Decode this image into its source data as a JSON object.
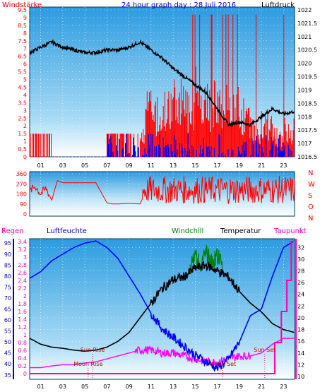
{
  "header": {
    "title": "24 hour graph day : 28 Juli 2016",
    "left_label": "Windstärke",
    "right_label": "Luftdruck"
  },
  "colors": {
    "wind": "#ff0000",
    "gust": "#0000ff",
    "pressure": "#000000",
    "direction": "#ff0000",
    "humidity": "#0000ff",
    "temperature": "#000000",
    "windchill": "#008000",
    "dewpoint": "#ff00ff",
    "rain": "#ff00aa",
    "sun_label": "#cc0000"
  },
  "chart_data": [
    {
      "type": "line",
      "id": "wind-pressure",
      "xlabel": "",
      "x_ticks": [
        "01",
        "03",
        "05",
        "07",
        "09",
        "11",
        "13",
        "15",
        "17",
        "19",
        "21",
        "23"
      ],
      "y_left": {
        "label": "Windstärke",
        "ticks": [
          "0",
          "0.5",
          "1",
          "1.5",
          "2",
          "2.5",
          "3",
          "3.5",
          "4",
          "4.5",
          "5",
          "5.5",
          "6",
          "6.5",
          "7",
          "7.5",
          "8",
          "8.5",
          "9",
          "9.5"
        ],
        "range": [
          0,
          9.5
        ]
      },
      "y_right": {
        "label": "Luftdruck",
        "ticks": [
          "1016.5",
          "1017",
          "1017.5",
          "1018",
          "1018.5",
          "1019",
          "1019.5",
          "1020",
          "1020.5",
          "1021",
          "1021.5",
          "1022"
        ],
        "range": [
          1016.5,
          1022
        ]
      },
      "pressure_series": {
        "hours": [
          0,
          1,
          2,
          3,
          4,
          5,
          6,
          7,
          8,
          9,
          10,
          11,
          12,
          13,
          14,
          15,
          16,
          17,
          18,
          19,
          20,
          21,
          22,
          23,
          24
        ],
        "values": [
          1020.4,
          1020.6,
          1020.8,
          1020.6,
          1020.5,
          1020.4,
          1020.4,
          1020.5,
          1020.5,
          1020.6,
          1020.8,
          1020.5,
          1020.2,
          1019.8,
          1019.5,
          1019.2,
          1018.9,
          1018.3,
          1017.7,
          1017.8,
          1017.7,
          1018.0,
          1018.3,
          1018.1,
          1018.2
        ]
      },
      "wind_steps": {
        "hours": [
          0,
          2,
          7,
          10,
          10.5,
          11,
          12,
          13,
          14,
          15,
          16,
          17,
          18,
          19,
          20,
          21,
          22,
          23,
          24
        ],
        "values": [
          1.5,
          0,
          1.5,
          1.5,
          3.5,
          3.0,
          3.5,
          4.0,
          3.5,
          4.5,
          4.0,
          4.5,
          3.5,
          3.0,
          2.0,
          2.5,
          1.5,
          2.0,
          3.0
        ]
      }
    },
    {
      "type": "line",
      "id": "direction",
      "y_left": {
        "ticks": [
          "0",
          "90",
          "180",
          "270",
          "360"
        ],
        "range": [
          0,
          360
        ]
      },
      "y_right_letters": [
        "N",
        "W",
        "S",
        "O",
        "N"
      ],
      "series": {
        "hours": [
          0,
          0.5,
          1,
          1.5,
          2,
          2.5,
          3,
          4,
          5,
          6,
          7,
          7.5,
          8,
          9,
          10,
          10.5,
          11,
          12,
          13,
          14,
          15,
          16,
          17,
          18,
          19,
          20,
          21,
          22,
          23,
          24
        ],
        "values": [
          200,
          250,
          180,
          230,
          120,
          300,
          280,
          280,
          280,
          280,
          100,
          90,
          90,
          95,
          90,
          200,
          260,
          180,
          240,
          160,
          220,
          200,
          260,
          150,
          230,
          190,
          240,
          170,
          250,
          200
        ]
      }
    },
    {
      "type": "line",
      "id": "temp-humidity",
      "x_ticks": [
        "01",
        "03",
        "05",
        "07",
        "09",
        "11",
        "13",
        "15",
        "17",
        "19",
        "21",
        "23"
      ],
      "labels": {
        "rain": "Regen",
        "humidity": "Luftfeuchte",
        "windchill": "Windchill",
        "temperature": "Temperatur",
        "dewpoint": "Taupunkt"
      },
      "y_humidity": {
        "ticks": [
          "35",
          "40",
          "45",
          "50",
          "55",
          "60",
          "65",
          "70",
          "75",
          "80",
          "85",
          "90",
          "95"
        ],
        "range": [
          33,
          97
        ]
      },
      "y_rain": {
        "ticks": [
          "0",
          "0.2",
          "0.4",
          "0.6",
          "0.8",
          "1",
          "1.2",
          "1.4",
          "1.6",
          "1.8",
          "2",
          "2.2",
          "2.4",
          "2.6",
          "2.8",
          "3",
          "3.2",
          "3.4"
        ],
        "range": [
          0,
          3.4
        ]
      },
      "y_temp": {
        "ticks": [
          "10",
          "12",
          "14",
          "16",
          "18",
          "20",
          "22",
          "24",
          "26",
          "28",
          "30",
          "32"
        ],
        "range": [
          10,
          33
        ]
      },
      "temperature": {
        "hours": [
          0,
          1,
          2,
          3,
          4,
          5,
          6,
          7,
          8,
          9,
          10,
          11,
          12,
          13,
          14,
          15,
          16,
          17,
          18,
          19,
          20,
          21,
          22,
          23,
          24
        ],
        "values": [
          16.5,
          15.5,
          15.0,
          14.8,
          14.5,
          14.3,
          14.5,
          15.0,
          16.0,
          17.5,
          20.0,
          22.5,
          25.0,
          26.5,
          27.0,
          28.5,
          29.0,
          28.0,
          27.0,
          24.5,
          22.5,
          21.0,
          19.0,
          18.0,
          17.5
        ]
      },
      "windchill": {
        "hours": [
          14.5,
          15,
          15.5,
          16,
          16.5,
          17,
          17.5
        ],
        "values": [
          30.0,
          32.0,
          30.5,
          32.5,
          31.0,
          32.0,
          30.5
        ]
      },
      "humidity": {
        "hours": [
          0,
          1,
          2,
          3,
          4,
          5,
          6,
          7,
          8,
          9,
          10,
          11,
          12,
          13,
          14,
          15,
          16,
          17,
          18,
          19,
          20,
          21,
          22,
          23,
          24
        ],
        "values": [
          79,
          82,
          87,
          90,
          93,
          95,
          96,
          93,
          88,
          80,
          72,
          63,
          56,
          52,
          48,
          44,
          41,
          38,
          42,
          50,
          62,
          65,
          80,
          93,
          96
        ]
      },
      "dewpoint": {
        "hours": [
          0,
          1,
          2,
          3,
          4,
          5,
          6,
          7,
          8,
          9,
          10,
          11,
          12,
          13,
          14,
          15,
          16,
          17,
          18,
          19,
          20,
          21,
          22,
          23,
          24
        ],
        "values": [
          11.5,
          11.5,
          11.8,
          12.0,
          12.0,
          12.3,
          12.5,
          13.0,
          13.5,
          14.0,
          14.5,
          14.5,
          14.0,
          14.0,
          13.5,
          13.0,
          12.5,
          12.5,
          13.0,
          13.5,
          13.5,
          14.0,
          15.5,
          16.5,
          16.5
        ]
      },
      "rain_steps": {
        "hours": [
          0,
          21.8,
          22.2,
          22.8,
          23.3,
          23.7,
          24
        ],
        "values": [
          0,
          0,
          0.8,
          1.6,
          2.4,
          3.4,
          3.4
        ]
      },
      "events": [
        {
          "label": "Moon Rise",
          "hour": 5.3
        },
        {
          "label": "Sun Rise",
          "hour": 5.7
        },
        {
          "label": "Moon Set",
          "hour": 17.5
        },
        {
          "label": "Sun Set",
          "hour": 21.3
        }
      ]
    }
  ]
}
